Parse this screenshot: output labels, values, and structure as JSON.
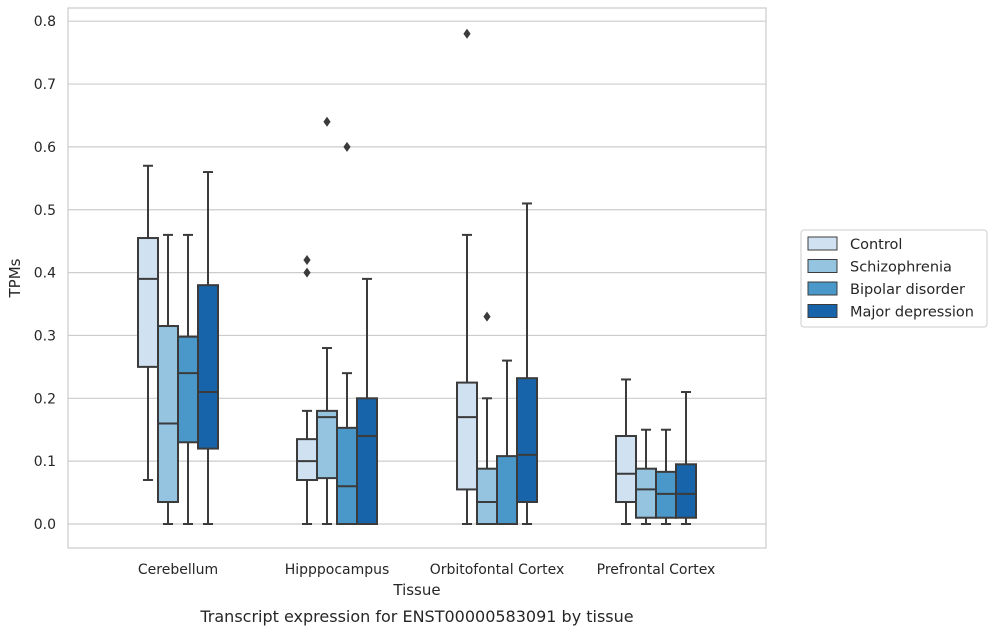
{
  "chart_data": {
    "type": "box",
    "xlabel": "Tissue",
    "ylabel": "TPMs",
    "caption": "Transcript expression for ENST00000583091 by tissue",
    "ylim": [
      -0.04,
      0.82
    ],
    "yticks": [
      0.0,
      0.1,
      0.2,
      0.3,
      0.4,
      0.5,
      0.6,
      0.7,
      0.8
    ],
    "yticks_labels": [
      "0.0",
      "0.1",
      "0.2",
      "0.3",
      "0.4",
      "0.5",
      "0.6",
      "0.7",
      "0.8"
    ],
    "grid": "horizontal",
    "legend_position": "right",
    "categories": [
      "Cerebellum",
      "Hipppocampus",
      "Orbitofontal Cortex",
      "Prefrontal Cortex"
    ],
    "series": [
      {
        "name": "Control",
        "color": "#d0e1f2",
        "boxes": [
          {
            "whisker_low": 0.07,
            "q1": 0.25,
            "median": 0.39,
            "q3": 0.455,
            "whisker_high": 0.57,
            "outliers": []
          },
          {
            "whisker_low": 0.0,
            "q1": 0.07,
            "median": 0.1,
            "q3": 0.135,
            "whisker_high": 0.18,
            "outliers": [
              0.4,
              0.42
            ]
          },
          {
            "whisker_low": 0.0,
            "q1": 0.055,
            "median": 0.17,
            "q3": 0.225,
            "whisker_high": 0.46,
            "outliers": [
              0.78
            ]
          },
          {
            "whisker_low": 0.0,
            "q1": 0.035,
            "median": 0.08,
            "q3": 0.14,
            "whisker_high": 0.23,
            "outliers": []
          }
        ]
      },
      {
        "name": "Schizophrenia",
        "color": "#94c4df",
        "boxes": [
          {
            "whisker_low": 0.0,
            "q1": 0.035,
            "median": 0.16,
            "q3": 0.315,
            "whisker_high": 0.46,
            "outliers": []
          },
          {
            "whisker_low": 0.0,
            "q1": 0.073,
            "median": 0.17,
            "q3": 0.18,
            "whisker_high": 0.28,
            "outliers": [
              0.64
            ]
          },
          {
            "whisker_low": 0.0,
            "q1": 0.0,
            "median": 0.035,
            "q3": 0.088,
            "whisker_high": 0.2,
            "outliers": [
              0.33
            ]
          },
          {
            "whisker_low": 0.0,
            "q1": 0.01,
            "median": 0.055,
            "q3": 0.088,
            "whisker_high": 0.15,
            "outliers": []
          }
        ]
      },
      {
        "name": "Bipolar disorder",
        "color": "#4a98c9",
        "boxes": [
          {
            "whisker_low": 0.0,
            "q1": 0.13,
            "median": 0.24,
            "q3": 0.298,
            "whisker_high": 0.46,
            "outliers": []
          },
          {
            "whisker_low": 0.0,
            "q1": 0.0,
            "median": 0.06,
            "q3": 0.153,
            "whisker_high": 0.24,
            "outliers": [
              0.6
            ]
          },
          {
            "whisker_low": 0.0,
            "q1": 0.0,
            "median": 0.0,
            "q3": 0.108,
            "whisker_high": 0.26,
            "outliers": []
          },
          {
            "whisker_low": 0.0,
            "q1": 0.01,
            "median": 0.048,
            "q3": 0.083,
            "whisker_high": 0.15,
            "outliers": []
          }
        ]
      },
      {
        "name": "Major depression",
        "color": "#1764ab",
        "boxes": [
          {
            "whisker_low": 0.0,
            "q1": 0.12,
            "median": 0.21,
            "q3": 0.38,
            "whisker_high": 0.56,
            "outliers": []
          },
          {
            "whisker_low": 0.0,
            "q1": 0.0,
            "median": 0.14,
            "q3": 0.2,
            "whisker_high": 0.39,
            "outliers": []
          },
          {
            "whisker_low": 0.0,
            "q1": 0.035,
            "median": 0.11,
            "q3": 0.232,
            "whisker_high": 0.51,
            "outliers": []
          },
          {
            "whisker_low": 0.0,
            "q1": 0.01,
            "median": 0.048,
            "q3": 0.095,
            "whisker_high": 0.21,
            "outliers": []
          }
        ]
      }
    ]
  }
}
